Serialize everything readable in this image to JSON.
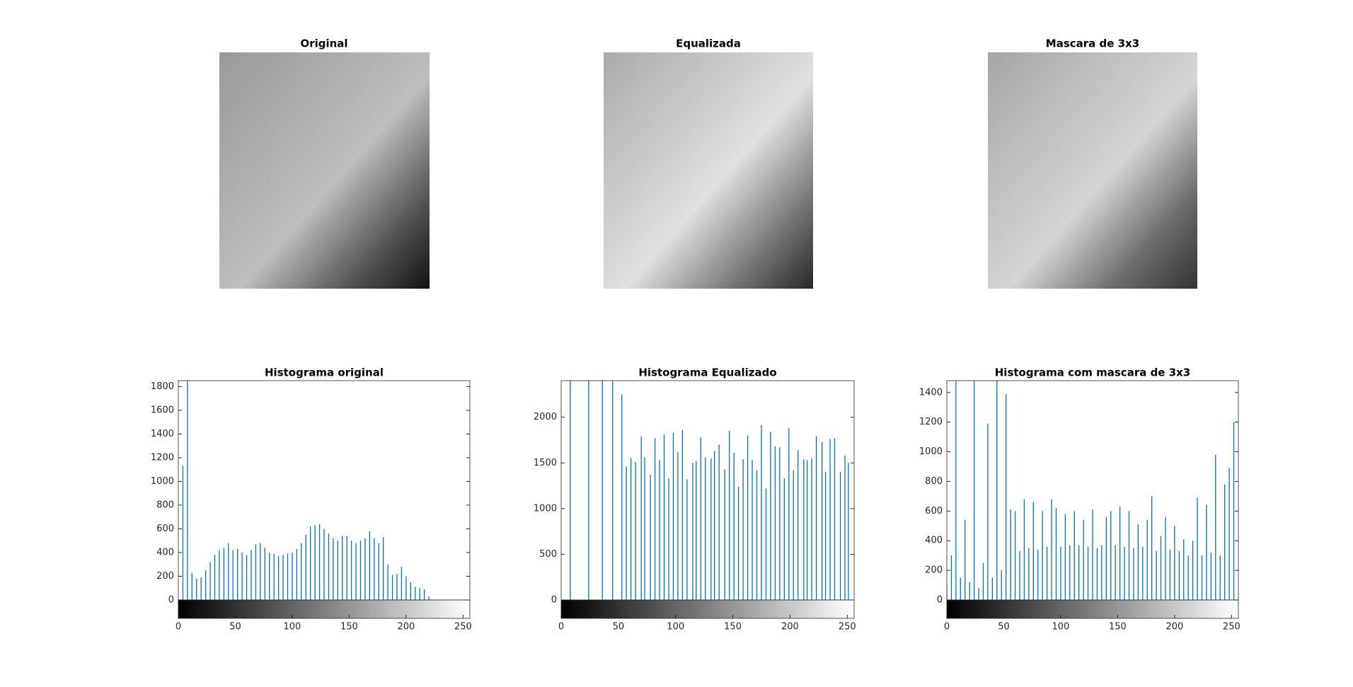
{
  "images": [
    {
      "title": "Original"
    },
    {
      "title": "Equalizada"
    },
    {
      "title": "Mascara de 3x3"
    }
  ],
  "chart_data": [
    {
      "type": "stem",
      "title": "Histograma original",
      "color": "#0072bd",
      "x": [
        0,
        4,
        8,
        12,
        16,
        20,
        24,
        28,
        32,
        36,
        40,
        44,
        48,
        52,
        56,
        60,
        64,
        68,
        72,
        76,
        80,
        84,
        88,
        92,
        96,
        100,
        104,
        108,
        112,
        116,
        120,
        124,
        128,
        132,
        136,
        140,
        144,
        148,
        152,
        156,
        160,
        164,
        168,
        172,
        176,
        180,
        184,
        188,
        192,
        196,
        200,
        204,
        208,
        212,
        216,
        220,
        224,
        228,
        232,
        236,
        240,
        244,
        248,
        252
      ],
      "values": [
        0,
        1130,
        2000,
        230,
        180,
        190,
        250,
        320,
        380,
        420,
        440,
        480,
        420,
        430,
        400,
        380,
        420,
        470,
        480,
        440,
        400,
        390,
        370,
        380,
        390,
        400,
        430,
        480,
        550,
        620,
        630,
        640,
        600,
        560,
        520,
        500,
        540,
        540,
        500,
        480,
        500,
        520,
        580,
        520,
        480,
        530,
        300,
        210,
        220,
        280,
        200,
        150,
        110,
        100,
        90,
        30,
        0,
        0,
        0,
        0,
        0,
        0,
        0,
        0
      ],
      "xlim": [
        0,
        256
      ],
      "xticks": [
        0,
        50,
        100,
        150,
        200,
        250
      ],
      "ylim": [
        0,
        1850
      ],
      "yticks": [
        0,
        200,
        400,
        600,
        800,
        1000,
        1200,
        1400,
        1600,
        1800
      ]
    },
    {
      "type": "stem",
      "title": "Histograma Equalizado",
      "color": "#0072bd",
      "x": [
        8,
        24,
        36,
        45,
        53,
        57,
        61,
        65,
        70,
        73,
        78,
        82,
        86,
        90,
        94,
        98,
        102,
        106,
        110,
        115,
        118,
        122,
        126,
        131,
        134,
        138,
        143,
        147,
        151,
        155,
        159,
        163,
        167,
        171,
        175,
        179,
        183,
        187,
        191,
        195,
        199,
        203,
        207,
        212,
        215,
        219,
        223,
        228,
        231,
        235,
        239,
        244,
        248,
        251
      ],
      "values": [
        2600,
        2600,
        2600,
        2600,
        2250,
        1460,
        1550,
        1510,
        1790,
        1560,
        1370,
        1770,
        1530,
        1810,
        1330,
        1830,
        1620,
        1860,
        1320,
        1500,
        1520,
        1780,
        1560,
        1550,
        1630,
        1700,
        1430,
        1850,
        1610,
        1240,
        1540,
        1800,
        1530,
        1420,
        1910,
        1220,
        1840,
        1680,
        1670,
        1330,
        1880,
        1420,
        1640,
        1540,
        1530,
        1550,
        1790,
        1730,
        1400,
        1760,
        1770,
        1400,
        1580,
        1500
      ],
      "xlim": [
        0,
        256
      ],
      "xticks": [
        0,
        50,
        100,
        150,
        200,
        250
      ],
      "ylim": [
        0,
        2400
      ],
      "yticks": [
        0,
        500,
        1000,
        1500,
        2000
      ]
    },
    {
      "type": "stem",
      "title": "Histograma com mascara de 3x3",
      "color": "#0072bd",
      "x": [
        0,
        4,
        8,
        12,
        16,
        20,
        24,
        28,
        32,
        36,
        40,
        44,
        48,
        52,
        56,
        60,
        64,
        68,
        72,
        76,
        80,
        84,
        88,
        92,
        96,
        100,
        104,
        108,
        112,
        116,
        120,
        124,
        128,
        132,
        136,
        140,
        144,
        148,
        152,
        156,
        160,
        164,
        168,
        172,
        176,
        180,
        184,
        188,
        192,
        196,
        200,
        204,
        208,
        212,
        216,
        220,
        224,
        228,
        232,
        236,
        240,
        244,
        248,
        252
      ],
      "values": [
        100,
        300,
        1500,
        150,
        540,
        120,
        1500,
        80,
        250,
        1190,
        150,
        1500,
        200,
        1390,
        610,
        600,
        330,
        680,
        350,
        660,
        340,
        600,
        360,
        680,
        620,
        360,
        580,
        370,
        600,
        370,
        540,
        360,
        610,
        350,
        370,
        560,
        600,
        370,
        630,
        360,
        600,
        350,
        510,
        360,
        540,
        700,
        330,
        430,
        560,
        340,
        500,
        330,
        410,
        300,
        400,
        690,
        300,
        640,
        320,
        980,
        300,
        780,
        890,
        1200
      ],
      "xlim": [
        0,
        256
      ],
      "xticks": [
        0,
        50,
        100,
        150,
        200,
        250
      ],
      "ylim": [
        0,
        1480
      ],
      "yticks": [
        0,
        200,
        400,
        600,
        800,
        1000,
        1200,
        1400
      ]
    }
  ]
}
